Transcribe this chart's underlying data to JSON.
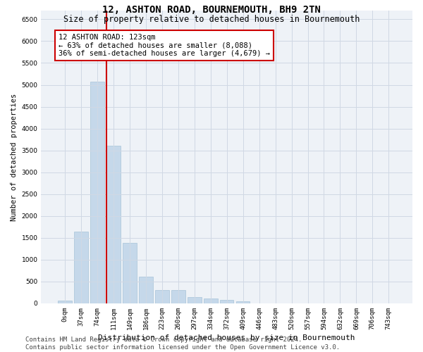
{
  "title": "12, ASHTON ROAD, BOURNEMOUTH, BH9 2TN",
  "subtitle": "Size of property relative to detached houses in Bournemouth",
  "xlabel": "Distribution of detached houses by size in Bournemouth",
  "ylabel": "Number of detached properties",
  "categories": [
    "0sqm",
    "37sqm",
    "74sqm",
    "111sqm",
    "149sqm",
    "186sqm",
    "223sqm",
    "260sqm",
    "297sqm",
    "334sqm",
    "372sqm",
    "409sqm",
    "446sqm",
    "483sqm",
    "520sqm",
    "557sqm",
    "594sqm",
    "632sqm",
    "669sqm",
    "706sqm",
    "743sqm"
  ],
  "bar_values": [
    70,
    1650,
    5070,
    3600,
    1390,
    610,
    300,
    300,
    140,
    110,
    80,
    50,
    0,
    0,
    0,
    0,
    0,
    0,
    0,
    0,
    0
  ],
  "bar_color": "#c5d8ea",
  "bar_edgecolor": "#a8c4d8",
  "property_line_x": 3,
  "annotation_text": "12 ASHTON ROAD: 123sqm\n← 63% of detached houses are smaller (8,088)\n36% of semi-detached houses are larger (4,679) →",
  "annotation_box_color": "#ffffff",
  "annotation_box_edgecolor": "#cc0000",
  "vline_color": "#cc0000",
  "ylim": [
    0,
    6700
  ],
  "yticks": [
    0,
    500,
    1000,
    1500,
    2000,
    2500,
    3000,
    3500,
    4000,
    4500,
    5000,
    5500,
    6000,
    6500
  ],
  "grid_color": "#d0d8e4",
  "background_color": "#eef2f7",
  "footer_text": "Contains HM Land Registry data © Crown copyright and database right 2024.\nContains public sector information licensed under the Open Government Licence v3.0.",
  "title_fontsize": 10,
  "subtitle_fontsize": 8.5,
  "xlabel_fontsize": 8,
  "ylabel_fontsize": 7.5,
  "tick_fontsize": 6.5,
  "annotation_fontsize": 7.5,
  "footer_fontsize": 6.5
}
